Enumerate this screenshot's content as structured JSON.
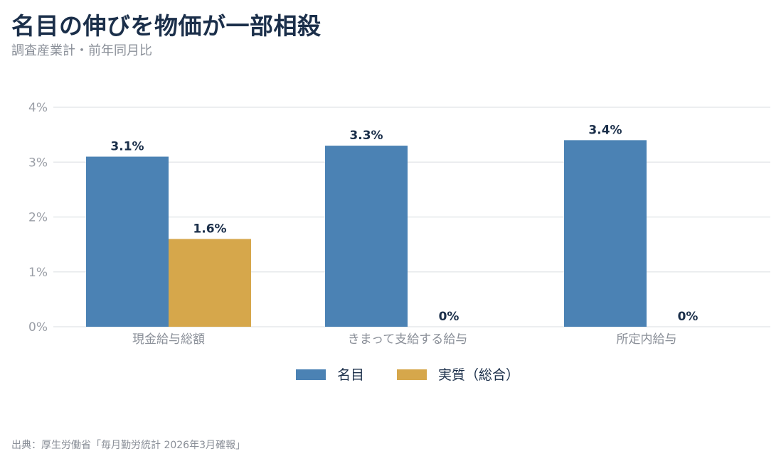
{
  "header": {
    "title": "名目の伸びを物価が一部相殺",
    "subtitle": "調査産業計・前年同月比"
  },
  "footer": {
    "source": "出典：厚生労働省「毎月勤労統計 2026年3月確報」"
  },
  "chart_data": {
    "type": "bar",
    "title": "名目の伸びを物価が一部相殺",
    "subtitle": "調査産業計・前年同月比",
    "categories": [
      "現金給与総額",
      "きまって支給する給与",
      "所定内給与"
    ],
    "series": [
      {
        "name": "名目",
        "values": [
          3.1,
          3.3,
          3.4
        ],
        "color": "#4b82b4"
      },
      {
        "name": "実質（総合）",
        "values": [
          1.6,
          0,
          0
        ],
        "color": "#d6a74b"
      }
    ],
    "data_labels": [
      [
        "3.1%",
        "3.3%",
        "3.4%"
      ],
      [
        "1.6%",
        "0%",
        "0%"
      ]
    ],
    "y_ticks": [
      {
        "value": 0,
        "label": "0%"
      },
      {
        "value": 1,
        "label": "1%"
      },
      {
        "value": 2,
        "label": "2%"
      },
      {
        "value": 3,
        "label": "3%"
      },
      {
        "value": 4,
        "label": "4%"
      }
    ],
    "ylim": [
      0,
      4
    ],
    "grid": true,
    "legend_position": "bottom"
  }
}
